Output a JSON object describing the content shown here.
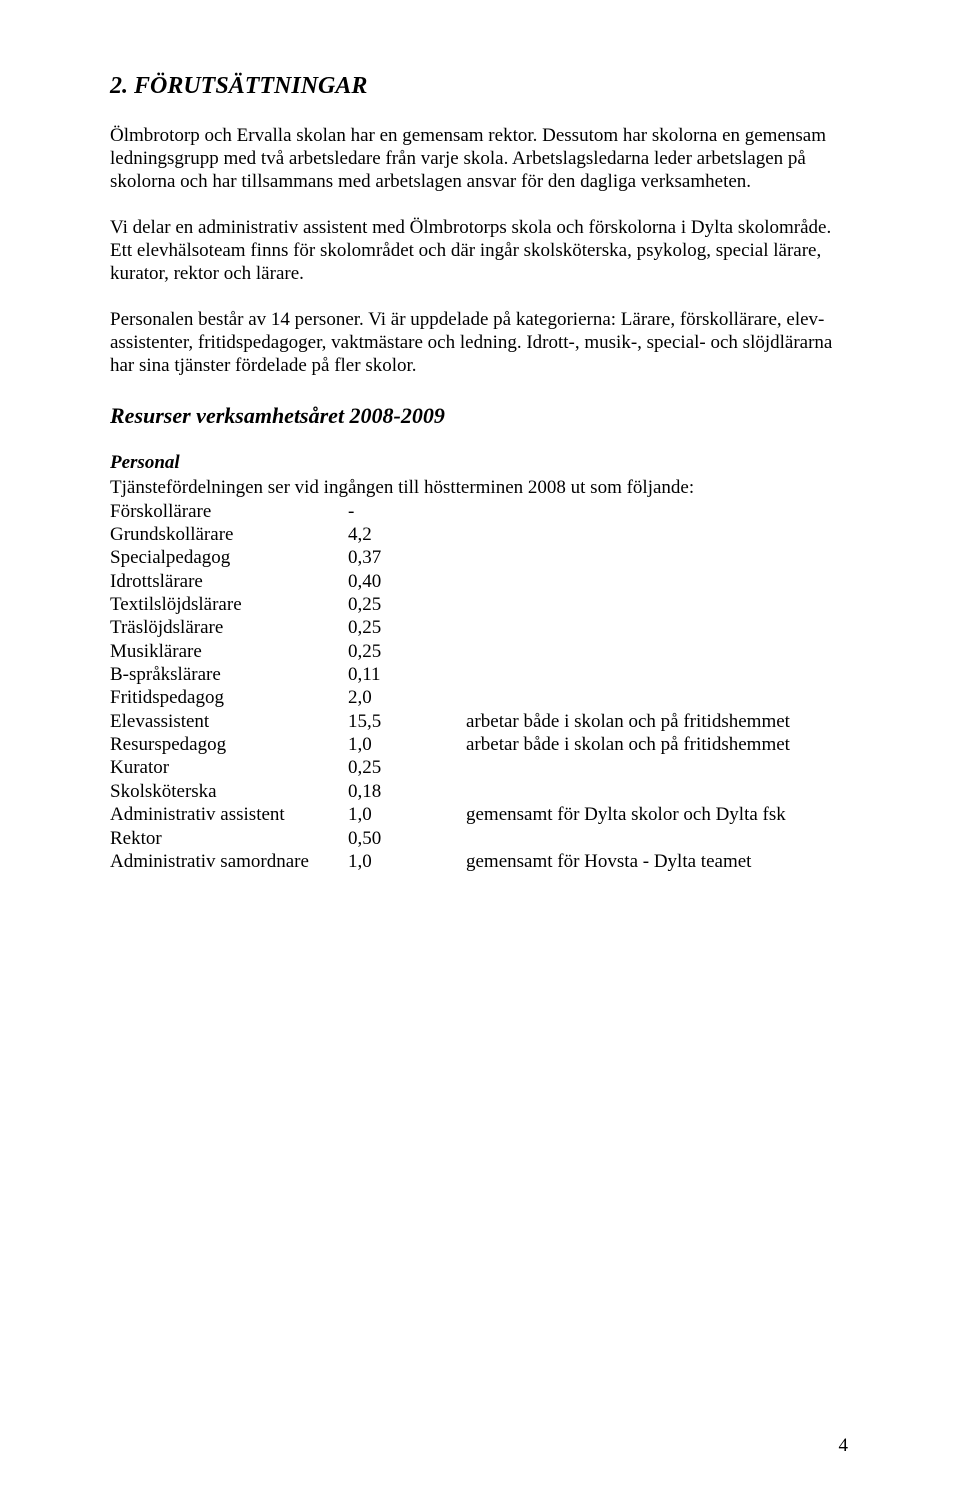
{
  "heading": "2. FÖRUTSÄTTNINGAR",
  "p1": "Ölmbrotorp och Ervalla skolan har en gemensam rektor. Dessutom har skolorna en gemensam ledningsgrupp med två arbetsledare från varje skola. Arbetslagsledarna leder arbetslagen på skolorna och har tillsammans med arbetslagen ansvar för den dagliga verksamheten.",
  "p2": "Vi delar en administrativ assistent med Ölmbrotorps skola och förskolorna i Dylta skolområde. Ett elevhälsoteam finns för skolområdet och där ingår skolsköterska, psykolog, special lärare, kurator, rektor och lärare.",
  "p3": "Personalen består av 14 personer. Vi är uppdelade på kategorierna: Lärare, förskollärare, elev-assistenter, fritidspedagoger, vaktmästare och ledning. Idrott-, musik-, special- och slöjdlärarna har sina tjänster fördelade på fler skolor.",
  "resources_heading": "Resurser verksamhetsåret 2008-2009",
  "personal_heading": "Personal",
  "personal_intro": "Tjänstefördelningen ser vid ingången till höstterminen 2008 ut som följande:",
  "rows": [
    {
      "label": "Förskollärare",
      "value": "-",
      "note": ""
    },
    {
      "label": "Grundskollärare",
      "value": "4,2",
      "note": ""
    },
    {
      "label": "Specialpedagog",
      "value": "0,37",
      "note": ""
    },
    {
      "label": "Idrottslärare",
      "value": "0,40",
      "note": ""
    },
    {
      "label": "Textilslöjdslärare",
      "value": "0,25",
      "note": ""
    },
    {
      "label": "Träslöjdslärare",
      "value": "0,25",
      "note": ""
    },
    {
      "label": "Musiklärare",
      "value": "0,25",
      "note": ""
    },
    {
      "label": "B-språkslärare",
      "value": "0,11",
      "note": ""
    },
    {
      "label": "Fritidspedagog",
      "value": "2,0",
      "note": ""
    },
    {
      "label": "Elevassistent",
      "value": "15,5",
      "note": "arbetar både i skolan och på fritidshemmet"
    },
    {
      "label": "Resurspedagog",
      "value": "1,0",
      "note": "arbetar både i skolan och på fritidshemmet"
    },
    {
      "label": "Kurator",
      "value": "0,25",
      "note": ""
    },
    {
      "label": "Skolsköterska",
      "value": "0,18",
      "note": ""
    },
    {
      "label": "Administrativ assistent",
      "value": "1,0",
      "note": "gemensamt för Dylta skolor och Dylta fsk"
    },
    {
      "label": "Rektor",
      "value": "0,50",
      "note": ""
    },
    {
      "label": "Administrativ samordnare",
      "value": "1,0",
      "note": "gemensamt för Hovsta - Dylta teamet"
    }
  ],
  "page_number": "4"
}
